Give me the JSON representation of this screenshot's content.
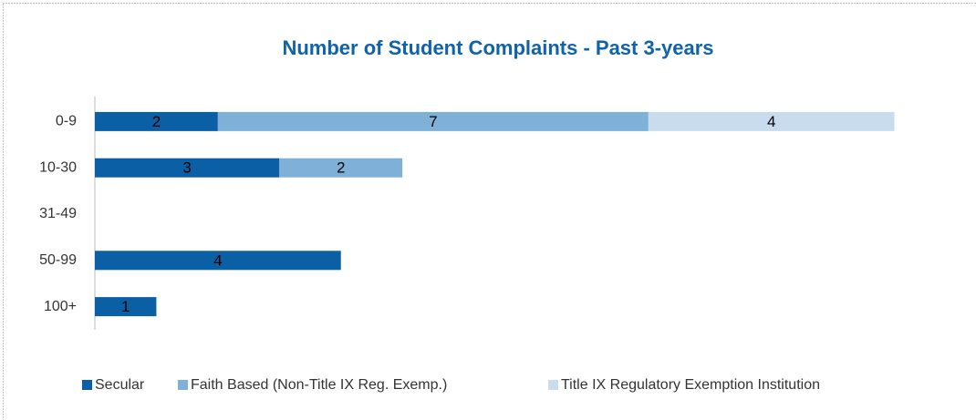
{
  "chart_data": {
    "type": "stacked-bar-horizontal",
    "title": "Number of Student Complaints - Past 3-years",
    "categories": [
      "0-9",
      "10-30",
      "31-49",
      "50-99",
      "100+"
    ],
    "series": [
      {
        "name": "Secular",
        "color": "#0b5fa5",
        "values": [
          2,
          3,
          null,
          4,
          1
        ]
      },
      {
        "name": "Faith Based (Non-Title IX Reg. Exemp.)",
        "color": "#7fb0d8",
        "values": [
          7,
          2,
          null,
          null,
          null
        ]
      },
      {
        "name": "Title IX Regulatory Exemption Institution",
        "color": "#c9dcee",
        "values": [
          4,
          null,
          null,
          null,
          null
        ]
      }
    ],
    "xlim": [
      0,
      14
    ],
    "legend": "bottom"
  }
}
